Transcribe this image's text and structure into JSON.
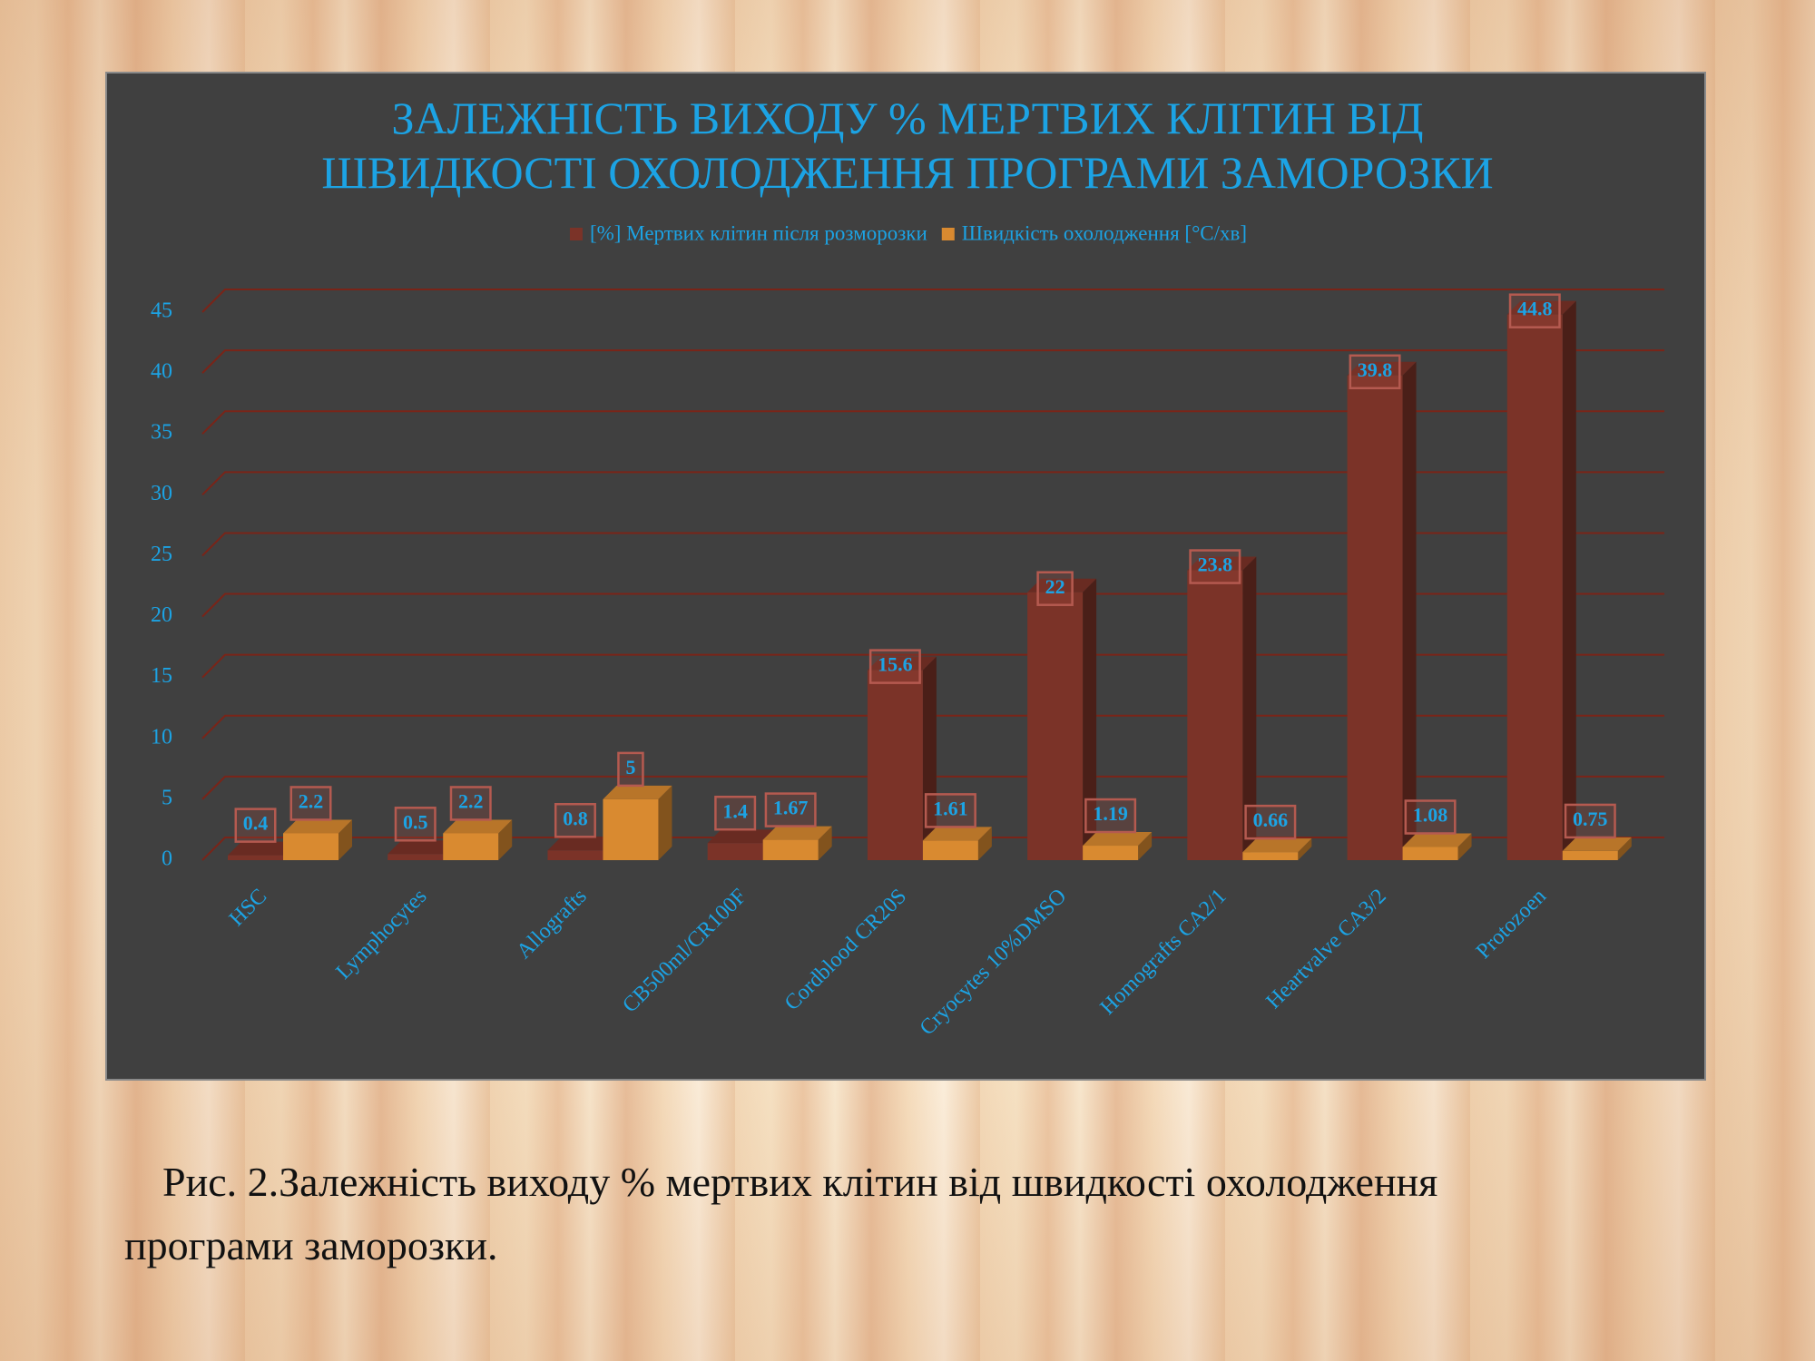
{
  "chart_data": {
    "type": "bar3d",
    "title": "ЗАЛЕЖНІСТЬ ВИХОДУ % МЕРТВИХ КЛІТИН ВІД ШВИДКОСТІ ОХОЛОДЖЕННЯ ПРОГРАМИ ЗАМОРОЗКИ",
    "categories": [
      "HSC",
      "Lymphocytes",
      "Allografts",
      "CB500ml/CR100F",
      "Cordblood CR20S",
      "Cryocytes 10%DMSO",
      "Homografts CA2/1",
      "Heartvalve CA3/2",
      "Protozoen"
    ],
    "series": [
      {
        "name": "[%] Мертвих клітин після розморозки",
        "color": "#7b3328",
        "values": [
          0.4,
          0.5,
          0.8,
          1.4,
          15.6,
          22,
          23.8,
          39.8,
          44.8
        ]
      },
      {
        "name": "Швидкість охолодження [°C/хв]",
        "color": "#d98a30",
        "values": [
          2.2,
          2.2,
          5,
          1.67,
          1.61,
          1.19,
          0.66,
          1.08,
          0.75
        ]
      }
    ],
    "ylim": [
      0,
      45
    ],
    "yticks": [
      0,
      5,
      10,
      15,
      20,
      25,
      30,
      35,
      40,
      45
    ],
    "grid": true,
    "legend": "top"
  },
  "caption": "Рис. 2.Залежність виходу % мертвих клітин від швидкості охолодження програми заморозки."
}
